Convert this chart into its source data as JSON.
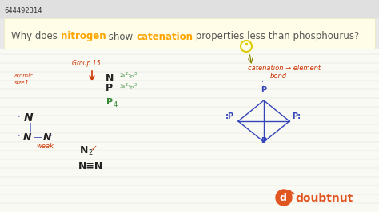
{
  "id_text": "644492314",
  "title_segments": [
    {
      "text": "Why does ",
      "color": "#555555",
      "bold": false
    },
    {
      "text": "nitrogen",
      "color": "#FFA500",
      "bold": true
    },
    {
      "text": " show ",
      "color": "#555555",
      "bold": false
    },
    {
      "text": "catenation",
      "color": "#FFA500",
      "bold": true
    },
    {
      "text": " properties less than phosphourus?",
      "color": "#555555",
      "bold": false
    }
  ],
  "bg_top": "#e8e8e8",
  "bg_title": "#fffde7",
  "bg_content": "#fafaf5",
  "line_color": "#d8d8cc",
  "red": "#cc3300",
  "blue": "#3344bb",
  "green": "#338833",
  "black": "#222222",
  "yellow_circle": "#ddcc00",
  "orange_logo": "#e05520"
}
